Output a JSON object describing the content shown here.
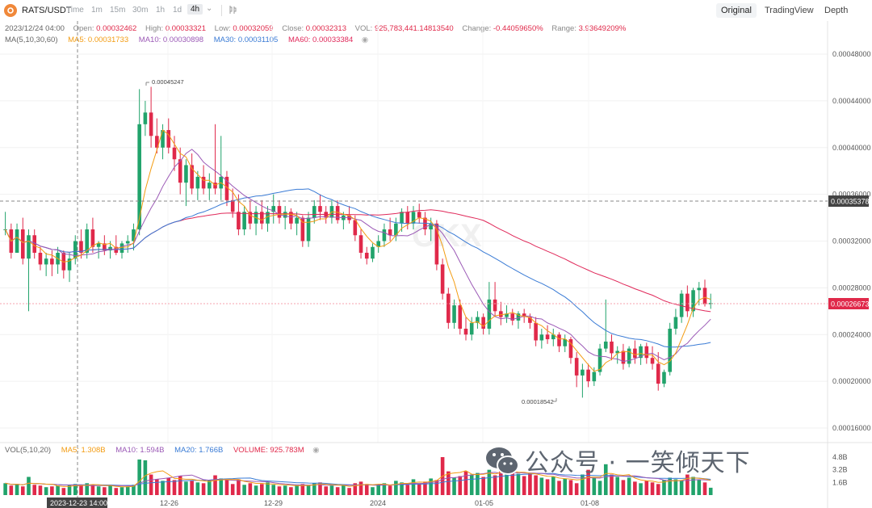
{
  "header": {
    "pair": "RATS/USDT",
    "timeframes": [
      "Time",
      "1m",
      "15m",
      "30m",
      "1h",
      "1d",
      "4h"
    ],
    "active_timeframe": "4h",
    "views": [
      "Original",
      "TradingView",
      "Depth"
    ],
    "active_view": "Original"
  },
  "ohlc": {
    "date": "2023/12/24 04:00",
    "open_label": "Open:",
    "open": "0.00032462",
    "high_label": "High:",
    "high": "0.00033321",
    "low_label": "Low:",
    "low": "0.00032059",
    "close_label": "Close:",
    "close": "0.00032313",
    "vol_label": "VOL:",
    "vol": "925,783,441.14813540",
    "change_label": "Change:",
    "change": "-0.44059650%",
    "range_label": "Range:",
    "range": "3.93649209%"
  },
  "ma_legend": {
    "title": "MA(5,10,30,60)",
    "ma5": "MA5: 0.00031733",
    "ma10": "MA10: 0.00030898",
    "ma30": "MA30: 0.00031105",
    "ma60": "MA60: 0.00033384"
  },
  "vol_legend": {
    "title": "VOL(5,10,20)",
    "ma5": "MA5: 1.308B",
    "ma10": "MA10: 1.594B",
    "ma20": "MA20: 1.766B",
    "volume": "VOLUME: 925.783M"
  },
  "colors": {
    "up": "#21a36b",
    "down": "#e0294a",
    "ma5": "#f39c12",
    "ma10": "#9b59b6",
    "ma30": "#3a7bd5",
    "ma60": "#e0295a"
  },
  "price_axis": [
    "0.00048000",
    "0.00044000",
    "0.00040000",
    "0.00036000",
    "0.00032000",
    "0.00028000",
    "0.00024000",
    "0.00020000",
    "0.00016000"
  ],
  "price_tags": {
    "crosshair": "0.00035378",
    "last": "0.00026673"
  },
  "annotations": {
    "high": "0.00045247",
    "low": "0.00018542"
  },
  "vol_axis": [
    "4.8B",
    "3.2B",
    "1.6B"
  ],
  "x_axis": {
    "crosshair_time": "2023-12-23 14:00",
    "dates": [
      "12-26",
      "12-29",
      "2024",
      "01-05",
      "01-08"
    ]
  },
  "watermark": {
    "text": "公众号 · 一笑倾天下",
    "brand": "OKX"
  },
  "chart_data": {
    "type": "candlestick",
    "price_range": [
      0.00014,
      0.0005
    ],
    "volume_range": [
      0,
      5.0
    ],
    "volume_unit": "B",
    "candles": [
      [
        0.00033,
        0.000345,
        0.000325,
        0.00033
      ],
      [
        0.00033,
        0.000335,
        0.000305,
        0.00031
      ],
      [
        0.00031,
        0.000335,
        0.00031,
        0.00033
      ],
      [
        0.00033,
        0.00034,
        0.0003,
        0.000305
      ],
      [
        0.000305,
        0.00033,
        0.00026,
        0.000325
      ],
      [
        0.000325,
        0.00033,
        0.000305,
        0.00031
      ],
      [
        0.00031,
        0.000315,
        0.000295,
        0.0003
      ],
      [
        0.0003,
        0.00031,
        0.00029,
        0.000305
      ],
      [
        0.000305,
        0.000312,
        0.00029,
        0.0003
      ],
      [
        0.0003,
        0.000315,
        0.000292,
        0.00031
      ],
      [
        0.00031,
        0.000312,
        0.000288,
        0.000295
      ],
      [
        0.000295,
        0.00031,
        0.000285,
        0.000305
      ],
      [
        0.000305,
        0.000325,
        0.0003,
        0.00032
      ],
      [
        0.00032,
        0.00033,
        0.000305,
        0.00031
      ],
      [
        0.00031,
        0.000335,
        0.000305,
        0.00033
      ],
      [
        0.00033,
        0.00034,
        0.00031,
        0.000315
      ],
      [
        0.000315,
        0.00032,
        0.000305,
        0.000318
      ],
      [
        0.000318,
        0.000325,
        0.000308,
        0.000312
      ],
      [
        0.000312,
        0.00032,
        0.000305,
        0.000315
      ],
      [
        0.000315,
        0.000325,
        0.000308,
        0.00031
      ],
      [
        0.00031,
        0.00032,
        0.000305,
        0.000318
      ],
      [
        0.000318,
        0.000325,
        0.00031,
        0.00032
      ],
      [
        0.00032,
        0.000335,
        0.000312,
        0.00033
      ],
      [
        0.00033,
        0.00045,
        0.000325,
        0.00042
      ],
      [
        0.00042,
        0.00044,
        0.00041,
        0.00043
      ],
      [
        0.00043,
        0.000452,
        0.0004,
        0.00041
      ],
      [
        0.00041,
        0.000425,
        0.000395,
        0.0004
      ],
      [
        0.0004,
        0.00042,
        0.00039,
        0.000415
      ],
      [
        0.000415,
        0.000425,
        0.000395,
        0.0004
      ],
      [
        0.0004,
        0.00041,
        0.00038,
        0.00039
      ],
      [
        0.00039,
        0.0004,
        0.00036,
        0.00037
      ],
      [
        0.00037,
        0.00039,
        0.00035,
        0.000385
      ],
      [
        0.000385,
        0.000395,
        0.00036,
        0.000365
      ],
      [
        0.000365,
        0.00038,
        0.000355,
        0.000375
      ],
      [
        0.000375,
        0.000385,
        0.00036,
        0.000365
      ],
      [
        0.000365,
        0.000378,
        0.000355,
        0.00037
      ],
      [
        0.00037,
        0.00042,
        0.00036,
        0.000365
      ],
      [
        0.000365,
        0.00041,
        0.000355,
        0.000375
      ],
      [
        0.000375,
        0.00038,
        0.00035,
        0.000355
      ],
      [
        0.000355,
        0.000365,
        0.00034,
        0.000345
      ],
      [
        0.000345,
        0.00036,
        0.000325,
        0.00033
      ],
      [
        0.00033,
        0.00035,
        0.000325,
        0.000345
      ],
      [
        0.000345,
        0.000355,
        0.00033,
        0.000335
      ],
      [
        0.000335,
        0.00035,
        0.000325,
        0.000345
      ],
      [
        0.000345,
        0.000355,
        0.00033,
        0.000335
      ],
      [
        0.000335,
        0.00035,
        0.000328,
        0.000345
      ],
      [
        0.000345,
        0.00036,
        0.000335,
        0.00035
      ],
      [
        0.00035,
        0.000355,
        0.000335,
        0.00034
      ],
      [
        0.00034,
        0.00035,
        0.00033,
        0.000345
      ],
      [
        0.000345,
        0.000348,
        0.00033,
        0.000335
      ],
      [
        0.000335,
        0.000345,
        0.000325,
        0.00034
      ],
      [
        0.00034,
        0.000342,
        0.000315,
        0.00032
      ],
      [
        0.00032,
        0.000345,
        0.000315,
        0.00034
      ],
      [
        0.00034,
        0.000355,
        0.000335,
        0.00035
      ],
      [
        0.00035,
        0.00036,
        0.000338,
        0.000345
      ],
      [
        0.000345,
        0.00035,
        0.000335,
        0.00034
      ],
      [
        0.00034,
        0.000355,
        0.000335,
        0.00035
      ],
      [
        0.00035,
        0.000355,
        0.000335,
        0.000338
      ],
      [
        0.000338,
        0.000345,
        0.00033,
        0.000342
      ],
      [
        0.000342,
        0.00035,
        0.000335,
        0.000338
      ],
      [
        0.000338,
        0.000342,
        0.00032,
        0.000325
      ],
      [
        0.000325,
        0.00033,
        0.000305,
        0.00031
      ],
      [
        0.00031,
        0.000315,
        0.0003,
        0.000305
      ],
      [
        0.000305,
        0.000318,
        0.000302,
        0.000315
      ],
      [
        0.000315,
        0.000325,
        0.00031,
        0.00032
      ],
      [
        0.00032,
        0.000335,
        0.000315,
        0.00033
      ],
      [
        0.00033,
        0.00034,
        0.00032,
        0.000325
      ],
      [
        0.000325,
        0.00034,
        0.00032,
        0.000335
      ],
      [
        0.000335,
        0.000348,
        0.000328,
        0.000345
      ],
      [
        0.000345,
        0.00035,
        0.00033,
        0.000335
      ],
      [
        0.000335,
        0.00035,
        0.00033,
        0.000345
      ],
      [
        0.000345,
        0.000352,
        0.000335,
        0.00034
      ],
      [
        0.00034,
        0.000345,
        0.000325,
        0.00033
      ],
      [
        0.00033,
        0.00034,
        0.00032,
        0.000335
      ],
      [
        0.000335,
        0.000338,
        0.000295,
        0.0003
      ],
      [
        0.0003,
        0.000305,
        0.00027,
        0.000275
      ],
      [
        0.000275,
        0.00028,
        0.000245,
        0.00025
      ],
      [
        0.00025,
        0.00027,
        0.000245,
        0.000265
      ],
      [
        0.000265,
        0.00027,
        0.00024,
        0.000245
      ],
      [
        0.000245,
        0.000255,
        0.000235,
        0.00024
      ],
      [
        0.00024,
        0.000255,
        0.000235,
        0.00025
      ],
      [
        0.00025,
        0.00026,
        0.000245,
        0.000255
      ],
      [
        0.000255,
        0.000258,
        0.00024,
        0.000245
      ],
      [
        0.000245,
        0.000285,
        0.00024,
        0.00027
      ],
      [
        0.00027,
        0.000285,
        0.000255,
        0.00026
      ],
      [
        0.00026,
        0.000268,
        0.000248,
        0.000255
      ],
      [
        0.000255,
        0.000265,
        0.00025,
        0.000258
      ],
      [
        0.000258,
        0.000262,
        0.000248,
        0.000252
      ],
      [
        0.000252,
        0.00026,
        0.000245,
        0.000258
      ],
      [
        0.000258,
        0.000262,
        0.00025,
        0.000255
      ],
      [
        0.000255,
        0.000258,
        0.000245,
        0.00025
      ],
      [
        0.00025,
        0.000255,
        0.00023,
        0.000235
      ],
      [
        0.000235,
        0.000245,
        0.000228,
        0.00024
      ],
      [
        0.00024,
        0.000248,
        0.000232,
        0.000236
      ],
      [
        0.000236,
        0.000245,
        0.00023,
        0.00024
      ],
      [
        0.00024,
        0.000242,
        0.000225,
        0.00023
      ],
      [
        0.00023,
        0.00024,
        0.000225,
        0.000236
      ],
      [
        0.000236,
        0.000238,
        0.000215,
        0.00022
      ],
      [
        0.00022,
        0.000225,
        0.000195,
        0.000205
      ],
      [
        0.000205,
        0.000215,
        0.000186,
        0.00021
      ],
      [
        0.00021,
        0.000215,
        0.000195,
        0.0002
      ],
      [
        0.0002,
        0.000212,
        0.000196,
        0.000208
      ],
      [
        0.000208,
        0.000232,
        0.000205,
        0.000228
      ],
      [
        0.000228,
        0.00027,
        0.000225,
        0.000234
      ],
      [
        0.000234,
        0.00024,
        0.000218,
        0.000224
      ],
      [
        0.000224,
        0.00023,
        0.000215,
        0.000226
      ],
      [
        0.000226,
        0.000232,
        0.00021,
        0.000215
      ],
      [
        0.000215,
        0.00023,
        0.000212,
        0.000228
      ],
      [
        0.000228,
        0.000235,
        0.000215,
        0.00022
      ],
      [
        0.00022,
        0.000232,
        0.000214,
        0.00023
      ],
      [
        0.00023,
        0.000233,
        0.000215,
        0.00022
      ],
      [
        0.00022,
        0.00023,
        0.00021,
        0.000215
      ],
      [
        0.000215,
        0.000225,
        0.000192,
        0.000198
      ],
      [
        0.000198,
        0.00021,
        0.000195,
        0.000208
      ],
      [
        0.000208,
        0.00025,
        0.000205,
        0.000245
      ],
      [
        0.000245,
        0.000262,
        0.00024,
        0.000255
      ],
      [
        0.000255,
        0.000278,
        0.00025,
        0.000275
      ],
      [
        0.000275,
        0.000282,
        0.000255,
        0.00026
      ],
      [
        0.00026,
        0.00028,
        0.000255,
        0.000278
      ],
      [
        0.000278,
        0.000285,
        0.000265,
        0.00028
      ],
      [
        0.00028,
        0.000287,
        0.000264,
        0.000266
      ],
      [
        0.000266,
        0.000275,
        0.000262,
        0.000267
      ]
    ],
    "volumes": [
      1.5,
      1.2,
      1.4,
      1.1,
      2.3,
      1.3,
      1.2,
      1.0,
      1.1,
      1.2,
      0.9,
      1.3,
      1.4,
      1.2,
      1.5,
      1.3,
      1.1,
      1.0,
      1.2,
      0.9,
      1.0,
      1.1,
      1.3,
      4.5,
      4.4,
      2.6,
      2.0,
      1.8,
      2.2,
      1.9,
      2.4,
      1.7,
      1.8,
      1.6,
      1.5,
      1.9,
      2.5,
      2.1,
      1.9,
      1.4,
      2.0,
      1.3,
      1.5,
      1.2,
      1.4,
      1.6,
      1.3,
      1.1,
      1.2,
      1.0,
      1.3,
      1.4,
      1.2,
      1.5,
      1.6,
      1.1,
      1.2,
      1.0,
      1.3,
      0.9,
      1.5,
      1.7,
      1.4,
      1.0,
      1.3,
      1.5,
      1.2,
      1.8,
      1.6,
      1.3,
      2.0,
      1.5,
      1.7,
      2.1,
      1.9,
      4.8,
      3.0,
      2.2,
      2.4,
      3.0,
      2.6,
      2.8,
      2.3,
      3.2,
      2.5,
      3.4,
      2.9,
      3.0,
      2.7,
      2.4,
      2.8,
      2.5,
      2.2,
      2.0,
      2.3,
      1.8,
      2.1,
      1.9,
      1.5,
      2.6,
      3.2,
      2.2,
      1.8,
      3.9,
      2.6,
      2.3,
      1.9,
      2.2,
      1.7,
      1.5,
      1.8,
      1.6,
      1.4,
      1.9,
      2.2,
      2.0,
      1.8,
      2.6,
      2.3,
      1.9,
      1.6,
      0.93
    ]
  }
}
